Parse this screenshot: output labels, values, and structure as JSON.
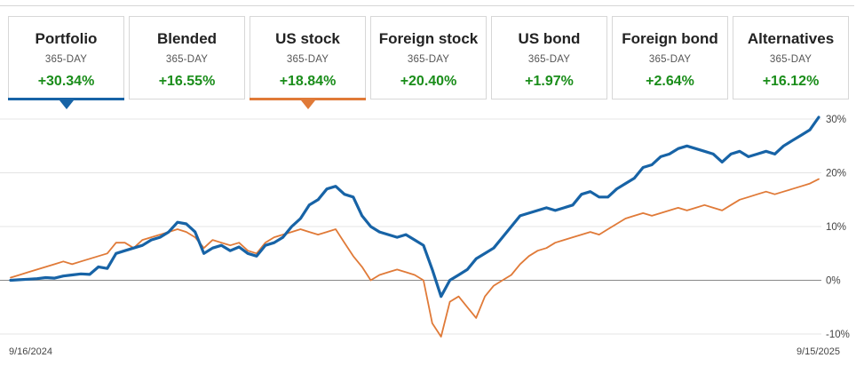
{
  "tabs": [
    {
      "name": "Portfolio",
      "period": "365-DAY",
      "value": "+30.34%",
      "state": "primary"
    },
    {
      "name": "Blended",
      "period": "365-DAY",
      "value": "+16.55%",
      "state": ""
    },
    {
      "name": "US stock",
      "period": "365-DAY",
      "value": "+18.84%",
      "state": "secondary"
    },
    {
      "name": "Foreign stock",
      "period": "365-DAY",
      "value": "+20.40%",
      "state": ""
    },
    {
      "name": "US bond",
      "period": "365-DAY",
      "value": "+1.97%",
      "state": ""
    },
    {
      "name": "Foreign bond",
      "period": "365-DAY",
      "value": "+2.64%",
      "state": ""
    },
    {
      "name": "Alternatives",
      "period": "365-DAY",
      "value": "+16.12%",
      "state": ""
    }
  ],
  "colors": {
    "portfolio": "#1763a6",
    "us_stock": "#e07a38",
    "positive": "#1a8d1a",
    "grid": "#e4e4e4",
    "zero_line": "#888888"
  },
  "chart_data": {
    "type": "line",
    "x_start_label": "9/16/2024",
    "x_end_label": "9/15/2025",
    "ylim": [
      -10,
      31
    ],
    "yticks": [
      30,
      20,
      10,
      0,
      -10
    ],
    "ytick_labels": [
      "30%",
      "20%",
      "10%",
      "0%",
      "-10%"
    ],
    "grid": true,
    "series": [
      {
        "name": "Portfolio",
        "color": "#1763a6",
        "points": [
          [
            0,
            0.0
          ],
          [
            1,
            0.1
          ],
          [
            2,
            0.2
          ],
          [
            3,
            0.3
          ],
          [
            4,
            0.5
          ],
          [
            5,
            0.4
          ],
          [
            6,
            0.8
          ],
          [
            7,
            1.0
          ],
          [
            8,
            1.2
          ],
          [
            9,
            1.1
          ],
          [
            10,
            2.5
          ],
          [
            11,
            2.2
          ],
          [
            12,
            5.0
          ],
          [
            13,
            5.5
          ],
          [
            14,
            6.0
          ],
          [
            15,
            6.5
          ],
          [
            16,
            7.5
          ],
          [
            17,
            8.0
          ],
          [
            18,
            9.0
          ],
          [
            19,
            10.8
          ],
          [
            20,
            10.5
          ],
          [
            21,
            9.0
          ],
          [
            22,
            5.0
          ],
          [
            23,
            6.0
          ],
          [
            24,
            6.5
          ],
          [
            25,
            5.5
          ],
          [
            26,
            6.2
          ],
          [
            27,
            5.0
          ],
          [
            28,
            4.5
          ],
          [
            29,
            6.5
          ],
          [
            30,
            7.0
          ],
          [
            31,
            8.0
          ],
          [
            32,
            10.0
          ],
          [
            33,
            11.5
          ],
          [
            34,
            14.0
          ],
          [
            35,
            15.0
          ],
          [
            36,
            17.0
          ],
          [
            37,
            17.5
          ],
          [
            38,
            16.0
          ],
          [
            39,
            15.5
          ],
          [
            40,
            12.0
          ],
          [
            41,
            10.0
          ],
          [
            42,
            9.0
          ],
          [
            43,
            8.5
          ],
          [
            44,
            8.0
          ],
          [
            45,
            8.5
          ],
          [
            46,
            7.5
          ],
          [
            47,
            6.5
          ],
          [
            48,
            2.0
          ],
          [
            49,
            -3.0
          ],
          [
            50,
            0.0
          ],
          [
            51,
            1.0
          ],
          [
            52,
            2.0
          ],
          [
            53,
            4.0
          ],
          [
            54,
            5.0
          ],
          [
            55,
            6.0
          ],
          [
            56,
            8.0
          ],
          [
            57,
            10.0
          ],
          [
            58,
            12.0
          ],
          [
            59,
            12.5
          ],
          [
            60,
            13.0
          ],
          [
            61,
            13.5
          ],
          [
            62,
            13.0
          ],
          [
            63,
            13.5
          ],
          [
            64,
            14.0
          ],
          [
            65,
            16.0
          ],
          [
            66,
            16.5
          ],
          [
            67,
            15.5
          ],
          [
            68,
            15.5
          ],
          [
            69,
            17.0
          ],
          [
            70,
            18.0
          ],
          [
            71,
            19.0
          ],
          [
            72,
            21.0
          ],
          [
            73,
            21.5
          ],
          [
            74,
            23.0
          ],
          [
            75,
            23.5
          ],
          [
            76,
            24.5
          ],
          [
            77,
            25.0
          ],
          [
            78,
            24.5
          ],
          [
            79,
            24.0
          ],
          [
            80,
            23.5
          ],
          [
            81,
            22.0
          ],
          [
            82,
            23.5
          ],
          [
            83,
            24.0
          ],
          [
            84,
            23.0
          ],
          [
            85,
            23.5
          ],
          [
            86,
            24.0
          ],
          [
            87,
            23.5
          ],
          [
            88,
            25.0
          ],
          [
            89,
            26.0
          ],
          [
            90,
            27.0
          ],
          [
            91,
            28.0
          ],
          [
            92,
            30.34
          ]
        ]
      },
      {
        "name": "US stock",
        "color": "#e07a38",
        "points": [
          [
            0,
            0.5
          ],
          [
            1,
            1.0
          ],
          [
            2,
            1.5
          ],
          [
            3,
            2.0
          ],
          [
            4,
            2.5
          ],
          [
            5,
            3.0
          ],
          [
            6,
            3.5
          ],
          [
            7,
            3.0
          ],
          [
            8,
            3.5
          ],
          [
            9,
            4.0
          ],
          [
            10,
            4.5
          ],
          [
            11,
            5.0
          ],
          [
            12,
            7.0
          ],
          [
            13,
            7.0
          ],
          [
            14,
            6.0
          ],
          [
            15,
            7.5
          ],
          [
            16,
            8.0
          ],
          [
            17,
            8.5
          ],
          [
            18,
            9.0
          ],
          [
            19,
            9.5
          ],
          [
            20,
            9.0
          ],
          [
            21,
            8.0
          ],
          [
            22,
            6.0
          ],
          [
            23,
            7.5
          ],
          [
            24,
            7.0
          ],
          [
            25,
            6.5
          ],
          [
            26,
            7.0
          ],
          [
            27,
            5.5
          ],
          [
            28,
            5.0
          ],
          [
            29,
            7.0
          ],
          [
            30,
            8.0
          ],
          [
            31,
            8.5
          ],
          [
            32,
            9.0
          ],
          [
            33,
            9.5
          ],
          [
            34,
            9.0
          ],
          [
            35,
            8.5
          ],
          [
            36,
            9.0
          ],
          [
            37,
            9.5
          ],
          [
            38,
            7.0
          ],
          [
            39,
            4.5
          ],
          [
            40,
            2.5
          ],
          [
            41,
            0.0
          ],
          [
            42,
            1.0
          ],
          [
            43,
            1.5
          ],
          [
            44,
            2.0
          ],
          [
            45,
            1.5
          ],
          [
            46,
            1.0
          ],
          [
            47,
            0.0
          ],
          [
            48,
            -8.0
          ],
          [
            49,
            -10.5
          ],
          [
            50,
            -4.0
          ],
          [
            51,
            -3.0
          ],
          [
            52,
            -5.0
          ],
          [
            53,
            -7.0
          ],
          [
            54,
            -3.0
          ],
          [
            55,
            -1.0
          ],
          [
            56,
            0.0
          ],
          [
            57,
            1.0
          ],
          [
            58,
            3.0
          ],
          [
            59,
            4.5
          ],
          [
            60,
            5.5
          ],
          [
            61,
            6.0
          ],
          [
            62,
            7.0
          ],
          [
            63,
            7.5
          ],
          [
            64,
            8.0
          ],
          [
            65,
            8.5
          ],
          [
            66,
            9.0
          ],
          [
            67,
            8.5
          ],
          [
            68,
            9.5
          ],
          [
            69,
            10.5
          ],
          [
            70,
            11.5
          ],
          [
            71,
            12.0
          ],
          [
            72,
            12.5
          ],
          [
            73,
            12.0
          ],
          [
            74,
            12.5
          ],
          [
            75,
            13.0
          ],
          [
            76,
            13.5
          ],
          [
            77,
            13.0
          ],
          [
            78,
            13.5
          ],
          [
            79,
            14.0
          ],
          [
            80,
            13.5
          ],
          [
            81,
            13.0
          ],
          [
            82,
            14.0
          ],
          [
            83,
            15.0
          ],
          [
            84,
            15.5
          ],
          [
            85,
            16.0
          ],
          [
            86,
            16.5
          ],
          [
            87,
            16.0
          ],
          [
            88,
            16.5
          ],
          [
            89,
            17.0
          ],
          [
            90,
            17.5
          ],
          [
            91,
            18.0
          ],
          [
            92,
            18.84
          ]
        ]
      }
    ]
  }
}
